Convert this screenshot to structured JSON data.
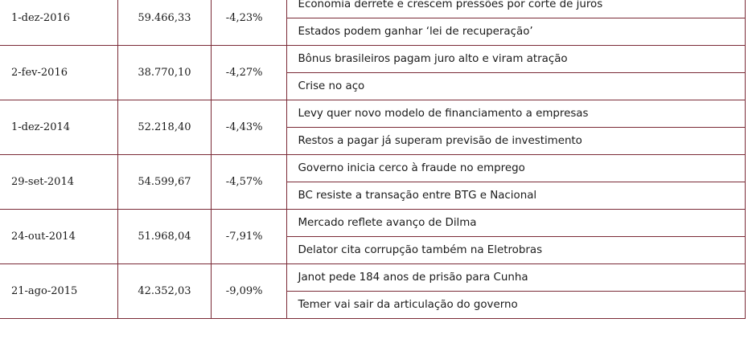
{
  "rows": [
    {
      "date": "1-dez-2016",
      "value": "59.466,33",
      "change": "-4,23%",
      "headlines": [
        "Economia derrete e crescem pressões por corte de juros",
        "Estados podem ganhar ‘lei de recuperação’"
      ]
    },
    {
      "date": "2-fev-2016",
      "value": "38.770,10",
      "change": "-4,27%",
      "headlines": [
        "Bônus brasileiros pagam juro alto e viram atração",
        "Crise no aço"
      ]
    },
    {
      "date": "1-dez-2014",
      "value": "52.218,40",
      "change": "-4,43%",
      "headlines": [
        "Levy quer novo modelo de financiamento a empresas",
        "Restos a pagar já superam previsão de investimento"
      ]
    },
    {
      "date": "29-set-2014",
      "value": "54.599,67",
      "change": "-4,57%",
      "headlines": [
        "Governo inicia cerco à fraude no emprego",
        "BC resiste a transação entre BTG e Nacional"
      ]
    },
    {
      "date": "24-out-2014",
      "value": "51.968,04",
      "change": "-7,91%",
      "headlines": [
        "Mercado reflete avanço de Dilma",
        "Delator cita corrupção também na Eletrobras"
      ]
    },
    {
      "date": "21-ago-2015",
      "value": "42.352,03",
      "change": "-9,09%",
      "headlines": [
        "Janot pede 184 anos de prisão para Cunha",
        "Temer vai sair da articulação do governo"
      ]
    }
  ]
}
